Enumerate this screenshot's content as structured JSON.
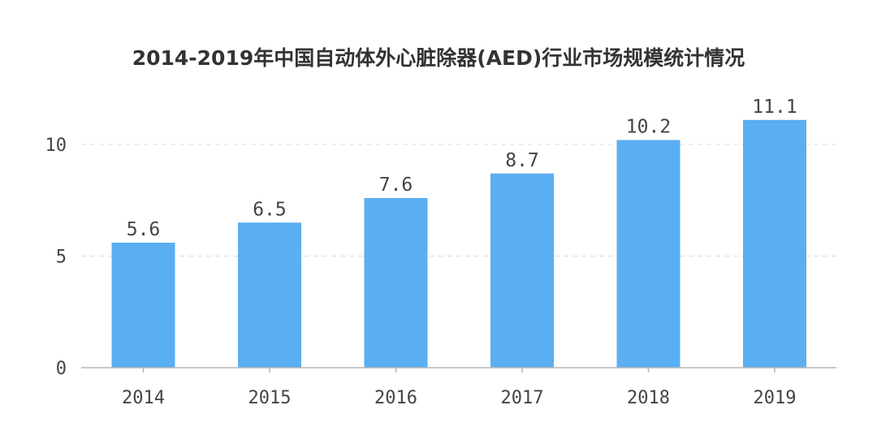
{
  "chart_data": {
    "type": "bar",
    "title": "2014-2019年中国自动体外心脏除器(AED)行业市场规模统计情况",
    "categories": [
      "2014",
      "2015",
      "2016",
      "2017",
      "2018",
      "2019"
    ],
    "values": [
      5.6,
      6.5,
      7.6,
      8.7,
      10.2,
      11.1
    ],
    "data_labels": [
      "5.6",
      "6.5",
      "7.6",
      "8.7",
      "10.2",
      "11.1"
    ],
    "y_ticks": [
      0,
      5,
      10
    ],
    "ylim": [
      0,
      10
    ],
    "grid": true,
    "legend": "none",
    "bar_color": "#5aaef2"
  }
}
